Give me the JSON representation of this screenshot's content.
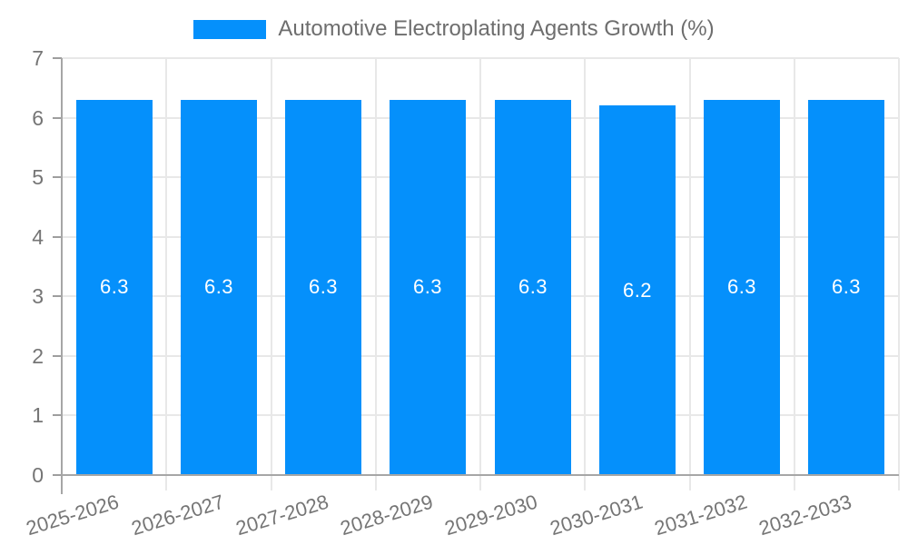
{
  "legend": {
    "label": "Automotive Electroplating Agents Growth (%)"
  },
  "colors": {
    "bar": "#0590fb",
    "gridline": "#e8e8e8",
    "axis_line": "#a6a6a6",
    "tick": "#9e9e9e",
    "axis_label_text": "#757575",
    "legend_text": "#6e6e6e",
    "bar_value_text": "#ffffff",
    "background": "#ffffff"
  },
  "chart_data": {
    "type": "bar",
    "title": "Automotive Electroplating Agents Growth (%)",
    "categories": [
      "2025-2026",
      "2026-2027",
      "2027-2028",
      "2028-2029",
      "2029-2030",
      "2030-2031",
      "2031-2032",
      "2032-2033"
    ],
    "values": [
      6.3,
      6.3,
      6.3,
      6.3,
      6.3,
      6.2,
      6.3,
      6.3
    ],
    "value_labels": [
      "6.3",
      "6.3",
      "6.3",
      "6.3",
      "6.3",
      "6.2",
      "6.3",
      "6.3"
    ],
    "xlabel": "",
    "ylabel": "",
    "ylim": [
      0,
      7
    ],
    "yticks": [
      0,
      1,
      2,
      3,
      4,
      5,
      6,
      7
    ],
    "grid": true,
    "legend_position": "top",
    "bar_label_position": "center"
  }
}
